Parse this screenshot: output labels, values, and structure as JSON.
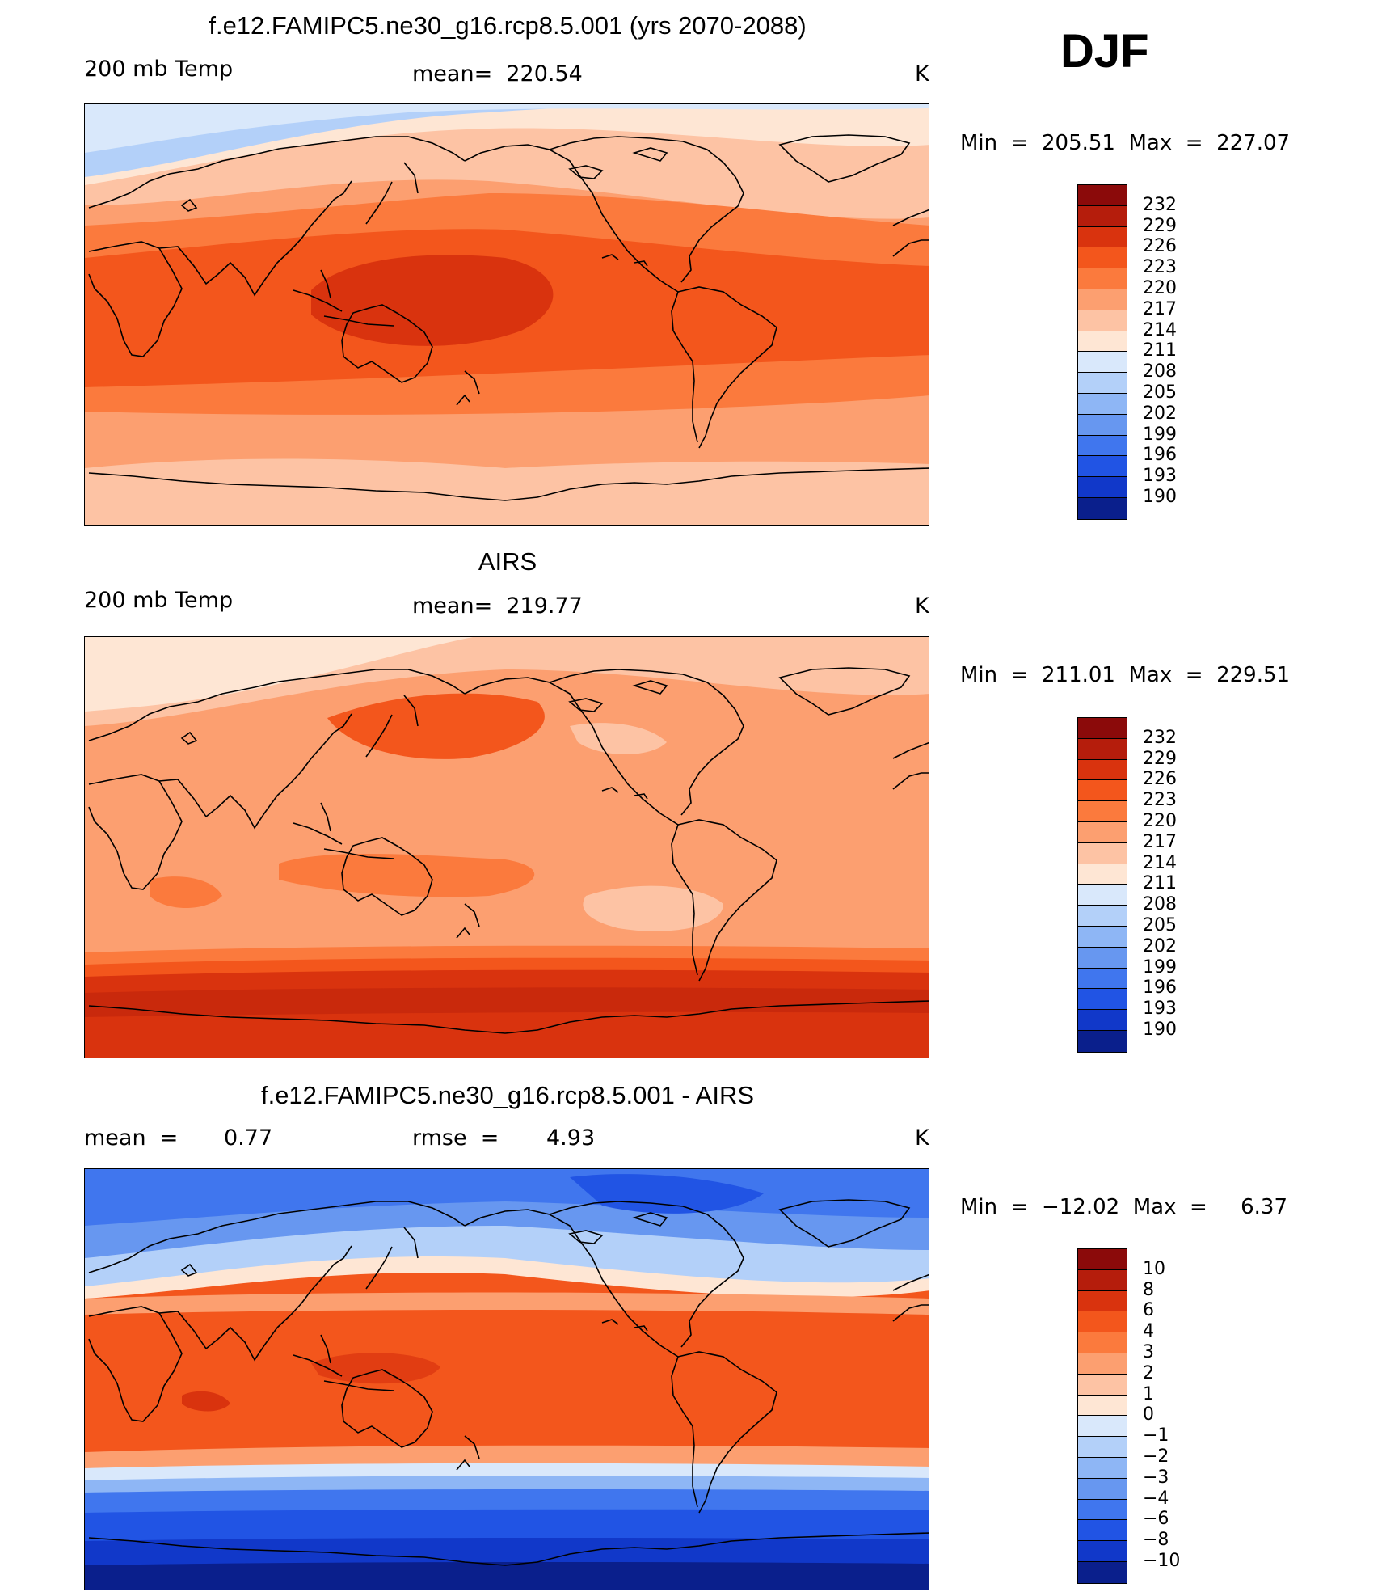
{
  "season": "DJF",
  "panels": [
    {
      "title": "f.e12.FAMIPC5.ne30_g16.rcp8.5.001 (yrs 2070-2088)",
      "left_label": "200 mb Temp",
      "center_label": "mean=  220.54",
      "units": "K",
      "minmax": "Min  =  205.51  Max  =  227.07",
      "map_name": "model-temperature-map"
    },
    {
      "title": "AIRS",
      "left_label": "200 mb Temp",
      "center_label": "mean=  219.77",
      "units": "K",
      "minmax": "Min  =  211.01  Max  =  229.51",
      "map_name": "airs-temperature-map"
    },
    {
      "title": "f.e12.FAMIPC5.ne30_g16.rcp8.5.001 - AIRS",
      "left_label": "mean  =",
      "left_value": "0.77",
      "center_label": "rmse  =",
      "center_value": "4.93",
      "units": "K",
      "minmax": "Min  =  −12.02  Max  =     6.37",
      "map_name": "difference-map"
    }
  ],
  "colorbars": {
    "temperature": {
      "levels": [
        "232",
        "229",
        "226",
        "223",
        "220",
        "217",
        "214",
        "211",
        "208",
        "205",
        "202",
        "199",
        "196",
        "193",
        "190"
      ],
      "colors": [
        "#8b0a0a",
        "#b51d0c",
        "#d9330e",
        "#f3561c",
        "#fb7a3d",
        "#fc9f70",
        "#fdc3a4",
        "#fee6d4",
        "#d9e8fb",
        "#b3d0f9",
        "#8eb6f5",
        "#6797f0",
        "#4076ee",
        "#2154e4",
        "#1138c9",
        "#0a1f8c"
      ]
    },
    "difference": {
      "levels": [
        "10",
        "8",
        "6",
        "4",
        "3",
        "2",
        "1",
        "0",
        "−1",
        "−2",
        "−3",
        "−4",
        "−6",
        "−8",
        "−10"
      ],
      "colors": [
        "#8b0a0a",
        "#b51d0c",
        "#d9330e",
        "#f3561c",
        "#fb7a3d",
        "#fc9f70",
        "#fdc3a4",
        "#fee6d4",
        "#d9e8fb",
        "#b3d0f9",
        "#8eb6f5",
        "#6797f0",
        "#4076ee",
        "#2154e4",
        "#1138c9",
        "#0a1f8c"
      ]
    }
  }
}
